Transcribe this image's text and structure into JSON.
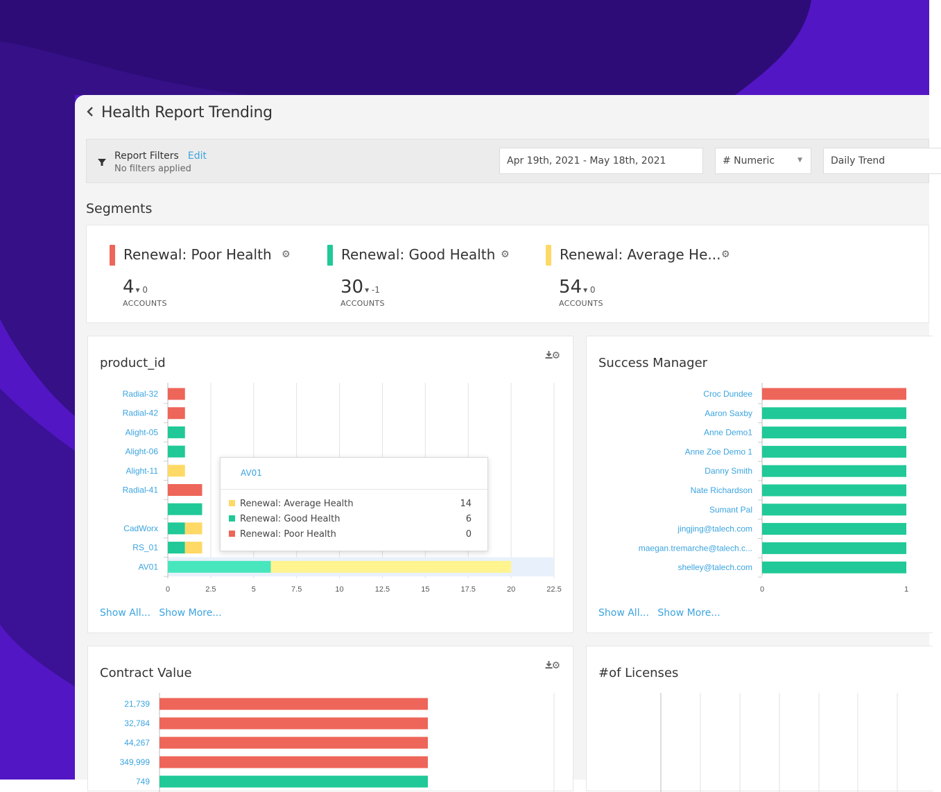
{
  "colors": {
    "poor": "#ee6559",
    "good": "#20c997",
    "average": "#ffd966",
    "link": "#3ba4e0",
    "highlight_good": "#47e6bd",
    "highlight_average": "#fff48e"
  },
  "header": {
    "back_icon": "chevron-left-icon",
    "title": "Health Report Trending"
  },
  "filters": {
    "icon": "filter-icon",
    "title": "Report Filters",
    "edit_label": "Edit",
    "subtitle": "No filters applied",
    "date_range": "Apr 19th, 2021 - May 18th, 2021",
    "metric_select": "# Numeric",
    "trend_select": "Daily Trend"
  },
  "segments": {
    "heading": "Segments",
    "items": [
      {
        "name": "Renewal: Poor Health",
        "count": "4",
        "delta": "▾ 0",
        "unit": "ACCOUNTS",
        "color": "#ee6559"
      },
      {
        "name": "Renewal: Good Health",
        "count": "30",
        "delta": "▾ -1",
        "unit": "ACCOUNTS",
        "color": "#20c997"
      },
      {
        "name": "Renewal: Average He...",
        "count": "54",
        "delta": "▾ 0",
        "unit": "ACCOUNTS",
        "color": "#ffd966"
      }
    ]
  },
  "cards": {
    "product": {
      "title": "product_id",
      "show_all": "Show All...",
      "show_more": "Show More..."
    },
    "manager": {
      "title": "Success Manager",
      "show_all": "Show All...",
      "show_more": "Show More..."
    },
    "contract": {
      "title": "Contract Value"
    },
    "licenses": {
      "title": "#of Licenses"
    }
  },
  "tooltip": {
    "title": "AV01",
    "rows": [
      {
        "label": "Renewal: Average Health",
        "value": "14",
        "color": "#ffd966"
      },
      {
        "label": "Renewal: Good Health",
        "value": "6",
        "color": "#20c997"
      },
      {
        "label": "Renewal: Poor Health",
        "value": "0",
        "color": "#ee6559"
      }
    ]
  },
  "chart_data": [
    {
      "type": "bar",
      "title": "product_id",
      "orientation": "horizontal",
      "stacked": true,
      "categories": [
        "Radial-32",
        "Radial-42",
        "Alight-05",
        "Alight-06",
        "Alight-11",
        "Radial-41",
        "",
        "CadWorx",
        "RS_01",
        "AV01"
      ],
      "series": [
        {
          "name": "Renewal: Poor Health",
          "color": "#ee6559",
          "values": [
            1,
            1,
            0,
            0,
            0,
            2,
            0,
            0,
            0,
            0
          ]
        },
        {
          "name": "Renewal: Good Health",
          "color": "#20c997",
          "values": [
            0,
            0,
            1,
            1,
            0,
            0,
            2,
            1,
            1,
            6
          ]
        },
        {
          "name": "Renewal: Average Health",
          "color": "#ffd966",
          "values": [
            0,
            0,
            0,
            0,
            1,
            0,
            0,
            1,
            1,
            14
          ]
        }
      ],
      "xticks": [
        "0",
        "2.5",
        "5",
        "7.5",
        "10",
        "12.5",
        "15",
        "17.5",
        "20",
        "22.5"
      ],
      "xlim": [
        0,
        22.5
      ],
      "highlighted_category": "AV01",
      "grid": true
    },
    {
      "type": "bar",
      "title": "Success Manager",
      "orientation": "horizontal",
      "categories": [
        "Croc Dundee",
        "Aaron Saxby",
        "Anne Demo1",
        "Anne Zoe Demo 1",
        "Danny Smith",
        "Nate Richardson",
        "Sumant Pal",
        "jingjing@talech.com",
        "maegan.tremarche@talech.c...",
        "shelley@talech.com"
      ],
      "series": [
        {
          "name": "Renewal: Poor Health",
          "color": "#ee6559",
          "values": [
            1,
            0,
            0,
            0,
            0,
            0,
            0,
            0,
            0,
            0
          ]
        },
        {
          "name": "Renewal: Good Health",
          "color": "#20c997",
          "values": [
            0,
            1,
            1,
            1,
            1,
            1,
            1,
            1,
            1,
            1
          ]
        }
      ],
      "xticks": [
        "0",
        "1"
      ],
      "xlim": [
        0,
        1
      ]
    },
    {
      "type": "bar",
      "title": "Contract Value",
      "orientation": "horizontal",
      "categories": [
        "21,739",
        "32,784",
        "44,267",
        "349,999",
        "749"
      ],
      "series": [
        {
          "name": "Renewal: Poor Health",
          "color": "#ee6559",
          "values": [
            1,
            1,
            1,
            1,
            0
          ]
        },
        {
          "name": "Renewal: Good Health",
          "color": "#20c997",
          "values": [
            0,
            0,
            0,
            0,
            1
          ]
        }
      ],
      "xlim": [
        0,
        2
      ]
    },
    {
      "type": "bar",
      "title": "#of Licenses",
      "orientation": "horizontal",
      "categories": [],
      "series": []
    }
  ]
}
